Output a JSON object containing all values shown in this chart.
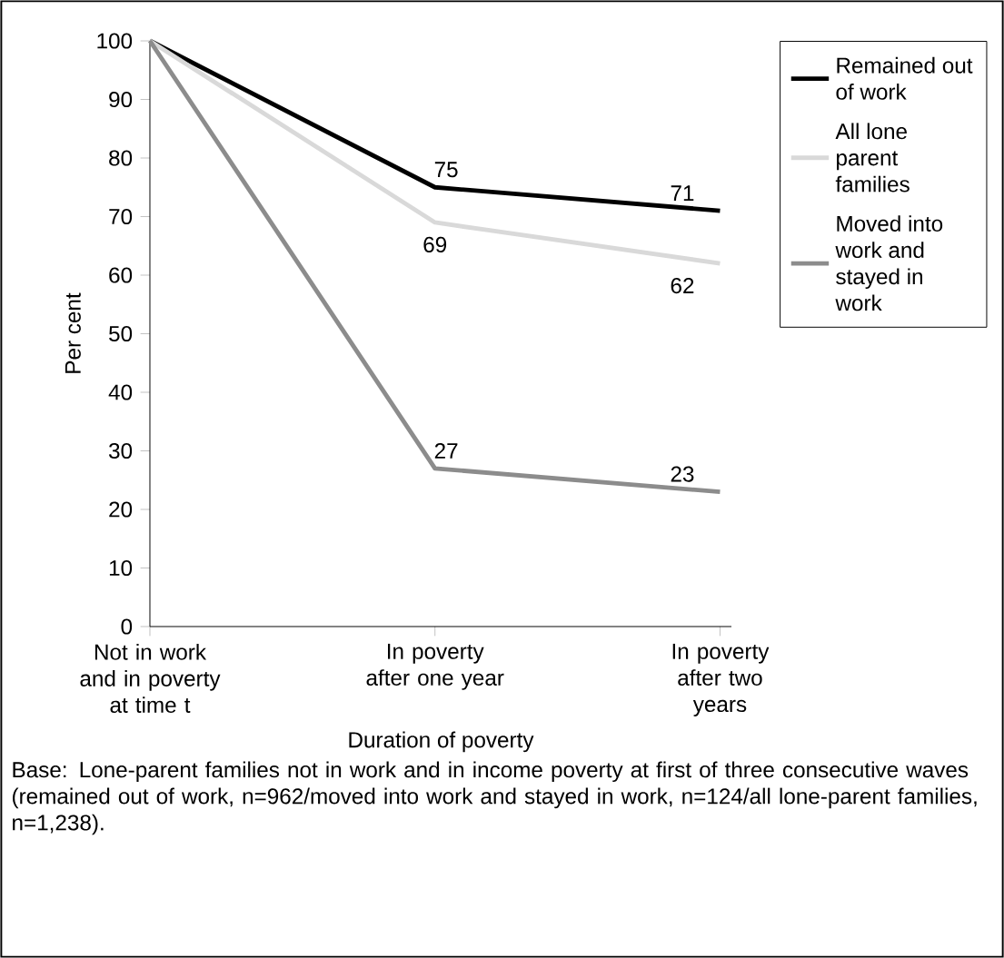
{
  "chart_data": {
    "type": "line",
    "xlabel": "Duration of poverty",
    "ylabel": "Per cent",
    "categories": [
      "Not in work and in poverty at time t",
      "In poverty after one year",
      "In poverty after two years"
    ],
    "series": [
      {
        "name": "Remained out of work",
        "color": "#000000",
        "values": [
          100,
          75,
          71
        ],
        "value_labels": [
          null,
          "75",
          "71"
        ]
      },
      {
        "name": "All lone parent families",
        "color": "#d9d9d9",
        "values": [
          100,
          69,
          62
        ],
        "value_labels": [
          null,
          "69",
          "62"
        ]
      },
      {
        "name": "Moved into work and stayed in work",
        "color": "#8c8c8c",
        "values": [
          100,
          27,
          23
        ],
        "value_labels": [
          null,
          "27",
          "23"
        ]
      }
    ],
    "ylim": [
      0,
      100
    ],
    "yticks": [
      0,
      10,
      20,
      30,
      40,
      50,
      60,
      70,
      80,
      90,
      100
    ],
    "legend": "right",
    "grid": false,
    "marker": "none",
    "line_style": "solid",
    "annotations": [
      "Base: Lone-parent families not in work and in income poverty at first of three consecutive waves (remained out of work, n=962/moved into work and stayed in work, n=124/all lone-parent families, n=1,238)."
    ]
  }
}
